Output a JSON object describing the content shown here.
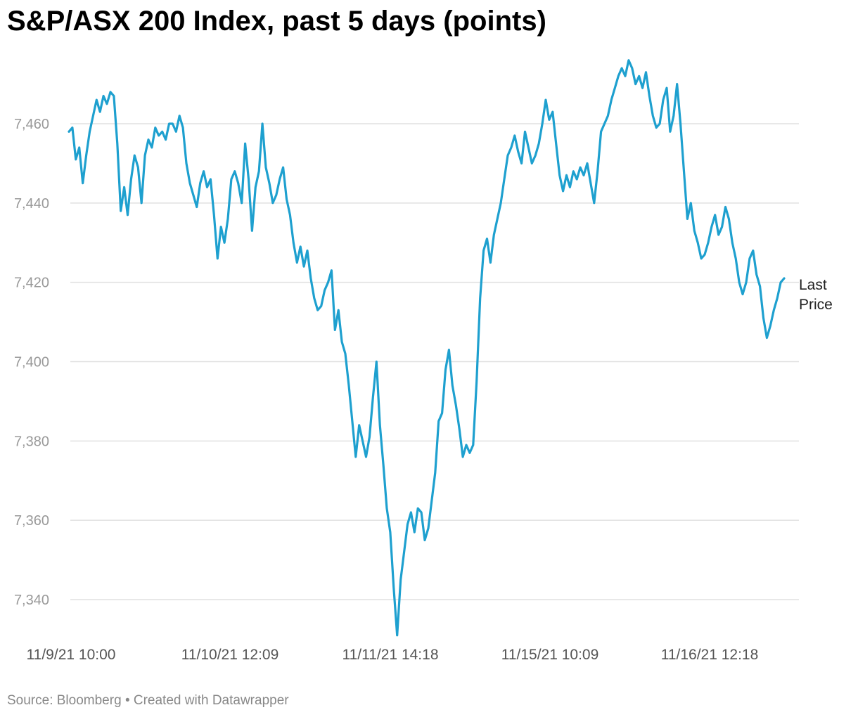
{
  "title": "S&P/ASX 200 Index, past 5 days (points)",
  "source_text": "Source: Bloomberg",
  "footer_sep": "•",
  "credit_text": "Created with Datawrapper",
  "colors": {
    "line": "#1ea0cf",
    "grid": "#e0e0e0",
    "tick": "#999999",
    "xtick": "#555555",
    "annotation": "#222222"
  },
  "chart_data": {
    "type": "line",
    "title": "S&P/ASX 200 Index, past 5 days (points)",
    "xlabel": "",
    "ylabel": "",
    "ylim": [
      7330,
      7475
    ],
    "yticks": [
      7340,
      7360,
      7380,
      7400,
      7420,
      7440,
      7460
    ],
    "ytick_labels": [
      "7,340",
      "7,360",
      "7,380",
      "7,400",
      "7,420",
      "7,440",
      "7,460"
    ],
    "xticks": [
      "11/9/21 10:00",
      "11/10/21 12:09",
      "11/11/21 14:18",
      "11/15/21 10:09",
      "11/16/21 12:18"
    ],
    "grid": true,
    "annotation": {
      "line1": "Last",
      "line2": "Price"
    },
    "series": [
      {
        "values": [
          7458,
          7459,
          7451,
          7454,
          7445,
          7452,
          7458,
          7462,
          7466,
          7463,
          7467,
          7465,
          7468,
          7467,
          7455,
          7438,
          7444,
          7437,
          7446,
          7452,
          7449,
          7440,
          7452,
          7456,
          7454,
          7459,
          7457,
          7458,
          7456,
          7460,
          7460,
          7458,
          7462,
          7459,
          7450,
          7445,
          7442,
          7439,
          7445,
          7448,
          7444,
          7446,
          7437,
          7426,
          7434,
          7430,
          7436,
          7446,
          7448,
          7445,
          7440,
          7455,
          7446,
          7433,
          7444,
          7448,
          7460,
          7449,
          7445,
          7440,
          7442,
          7446,
          7449,
          7441,
          7437,
          7430,
          7425,
          7429,
          7424,
          7428,
          7421,
          7416,
          7413,
          7414,
          7418,
          7420,
          7423,
          7408,
          7413,
          7405,
          7402,
          7394,
          7385,
          7376,
          7384,
          7380,
          7376,
          7381,
          7391,
          7400,
          7384,
          7374,
          7363,
          7357,
          7343,
          7331,
          7345,
          7352,
          7359,
          7362,
          7357,
          7363,
          7362,
          7355,
          7358,
          7365,
          7372,
          7385,
          7387,
          7398,
          7403,
          7394,
          7389,
          7383,
          7376,
          7379,
          7377,
          7379,
          7395,
          7416,
          7428,
          7431,
          7425,
          7432,
          7436,
          7440,
          7446,
          7452,
          7454,
          7457,
          7453,
          7450,
          7458,
          7454,
          7450,
          7452,
          7455,
          7460,
          7466,
          7461,
          7463,
          7455,
          7447,
          7443,
          7447,
          7444,
          7448,
          7446,
          7449,
          7447,
          7450,
          7445,
          7440,
          7448,
          7458,
          7460,
          7462,
          7466,
          7469,
          7472,
          7474,
          7472,
          7476,
          7474,
          7470,
          7472,
          7469,
          7473,
          7467,
          7462,
          7459,
          7460,
          7466,
          7469,
          7458,
          7462,
          7470,
          7460,
          7448,
          7436,
          7440,
          7433,
          7430,
          7426,
          7427,
          7430,
          7434,
          7437,
          7432,
          7434,
          7439,
          7436,
          7430,
          7426,
          7420,
          7417,
          7420,
          7426,
          7428,
          7422,
          7419,
          7411,
          7406,
          7409,
          7413,
          7416,
          7420,
          7421
        ]
      }
    ]
  }
}
